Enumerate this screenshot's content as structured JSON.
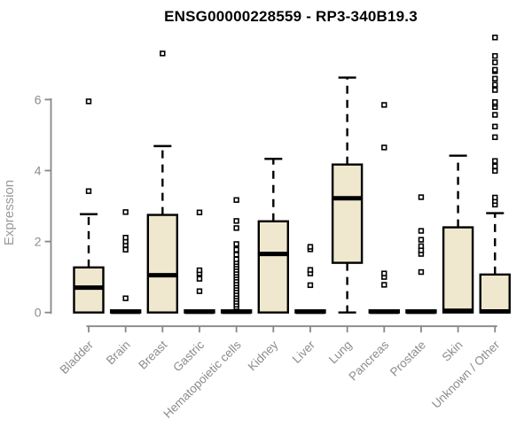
{
  "chart_data": {
    "type": "boxplot",
    "title": "ENSG00000228559 - RP3-340B19.3",
    "ylabel": "Expression",
    "xlabel": "",
    "yticks": [
      0,
      2,
      4,
      6
    ],
    "ylim": [
      0,
      7.9
    ],
    "grid": false,
    "legend": "none",
    "colors": {
      "box_fill": "#efe8ce",
      "box_stroke": "#000000",
      "axis": "#878787",
      "tick_label": "#8c8c8c",
      "axis_label": "#9a9a9a",
      "title": "#000000"
    },
    "categories": [
      "Bladder",
      "Brain",
      "Breast",
      "Gastric",
      "Hematopoietic cells",
      "Kidney",
      "Liver",
      "Lung",
      "Pancreas",
      "Prostate",
      "Skin",
      "Unknown / Other"
    ],
    "boxes": [
      {
        "category": "Bladder",
        "whisker_low": 0,
        "q1": 0,
        "median": 0.7,
        "q3": 1.27,
        "whisker_high": 2.77,
        "outliers": [
          3.42,
          5.95
        ]
      },
      {
        "category": "Brain",
        "whisker_low": 0,
        "q1": 0,
        "median": 0.02,
        "q3": 0.06,
        "whisker_high": 0.06,
        "outliers": [
          0.4,
          1.77,
          1.9,
          2.0,
          2.11,
          2.83
        ]
      },
      {
        "category": "Breast",
        "whisker_low": 0,
        "q1": 0,
        "median": 1.05,
        "q3": 2.75,
        "whisker_high": 4.69,
        "outliers": [
          7.3
        ]
      },
      {
        "category": "Gastric",
        "whisker_low": 0,
        "q1": 0,
        "median": 0.02,
        "q3": 0.06,
        "whisker_high": 0.06,
        "outliers": [
          0.6,
          0.95,
          1.1,
          1.19,
          2.82
        ]
      },
      {
        "category": "Hematopoietic cells",
        "whisker_low": 0,
        "q1": 0,
        "median": 0.02,
        "q3": 0.06,
        "whisker_high": 0.06,
        "outliers": [
          0.15,
          0.22,
          0.3,
          0.38,
          0.45,
          0.52,
          0.6,
          0.68,
          0.75,
          0.82,
          0.9,
          0.98,
          1.05,
          1.12,
          1.2,
          1.28,
          1.35,
          1.42,
          1.5,
          1.63,
          1.77,
          1.93,
          2.38,
          2.58,
          3.17
        ]
      },
      {
        "category": "Kidney",
        "whisker_low": 0,
        "q1": 0,
        "median": 1.65,
        "q3": 2.57,
        "whisker_high": 4.33,
        "outliers": []
      },
      {
        "category": "Liver",
        "whisker_low": 0,
        "q1": 0,
        "median": 0.02,
        "q3": 0.06,
        "whisker_high": 0.06,
        "outliers": [
          0.77,
          1.1,
          1.2,
          1.78,
          1.85
        ]
      },
      {
        "category": "Lung",
        "whisker_low": 0,
        "q1": 1.4,
        "median": 3.22,
        "q3": 4.17,
        "whisker_high": 6.62,
        "outliers": []
      },
      {
        "category": "Pancreas",
        "whisker_low": 0,
        "q1": 0,
        "median": 0.02,
        "q3": 0.06,
        "whisker_high": 0.06,
        "outliers": [
          0.78,
          1.0,
          1.1,
          4.65,
          5.85
        ]
      },
      {
        "category": "Prostate",
        "whisker_low": 0,
        "q1": 0,
        "median": 0.02,
        "q3": 0.06,
        "whisker_high": 0.06,
        "outliers": [
          1.14,
          1.65,
          1.75,
          1.87,
          2.05,
          2.3,
          3.25
        ]
      },
      {
        "category": "Skin",
        "whisker_low": 0,
        "q1": 0,
        "median": 0.05,
        "q3": 2.4,
        "whisker_high": 4.42,
        "outliers": []
      },
      {
        "category": "Unknown / Other",
        "whisker_low": 0,
        "q1": 0,
        "median": 0.03,
        "q3": 1.07,
        "whisker_high": 2.8,
        "outliers": [
          3.04,
          3.14,
          3.24,
          3.99,
          4.12,
          4.27,
          4.94,
          5.24,
          5.57,
          5.79,
          5.88,
          5.93,
          6.27,
          6.42,
          6.59,
          6.8,
          6.84,
          7.05,
          7.23,
          7.75
        ]
      }
    ]
  }
}
